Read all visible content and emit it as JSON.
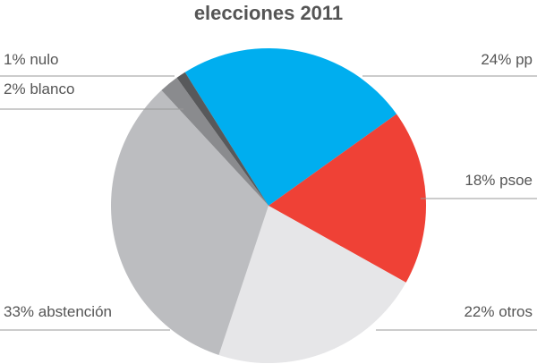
{
  "chart_data": {
    "type": "pie",
    "title": "elecciones 2011",
    "categories": [
      "pp",
      "psoe",
      "otros",
      "abstención",
      "blanco",
      "nulo"
    ],
    "values": [
      24,
      18,
      22,
      33,
      2,
      1
    ],
    "value_labels": [
      "24%",
      "18%",
      "22%",
      "33%",
      "2%",
      "1%"
    ],
    "colors": [
      "#00aeef",
      "#ef4136",
      "#e6e6e8",
      "#bcbdc0",
      "#8a8b8e",
      "#58595b"
    ]
  }
}
